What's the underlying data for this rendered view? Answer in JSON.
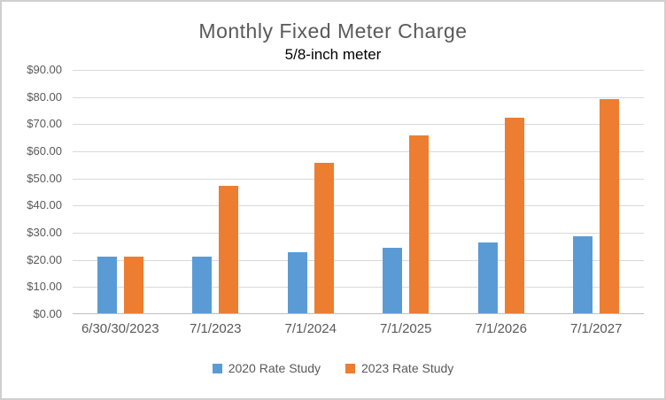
{
  "chart_data": {
    "type": "bar",
    "title": "Monthly Fixed Meter Charge",
    "subtitle": "5/8-inch meter",
    "categories": [
      "6/30/30/2023",
      "7/1/2023",
      "7/1/2024",
      "7/1/2025",
      "7/1/2026",
      "7/1/2027"
    ],
    "series": [
      {
        "name": "2020 Rate Study",
        "color": "#5B9BD5",
        "values": [
          21.0,
          21.0,
          22.5,
          24.0,
          26.25,
          28.5
        ]
      },
      {
        "name": "2023 Rate Study",
        "color": "#ED7D31",
        "values": [
          21.0,
          47.0,
          55.5,
          65.5,
          72.0,
          79.0
        ]
      }
    ],
    "ylabel": "",
    "xlabel": "",
    "ylim": [
      0,
      90
    ],
    "y_tick_interval": 10,
    "y_tick_labels": [
      "$90.00",
      "$80.00",
      "$70.00",
      "$60.00",
      "$50.00",
      "$40.00",
      "$30.00",
      "$20.00",
      "$10.00",
      "$0.00"
    ],
    "grid": true,
    "legend_position": "bottom",
    "colors": {
      "title": "#595959",
      "subtitle": "#000000",
      "axis_text": "#595959",
      "gridline": "#D9D9D9",
      "axis_line": "#BFBFBF",
      "border": "#CFCFCF"
    }
  }
}
